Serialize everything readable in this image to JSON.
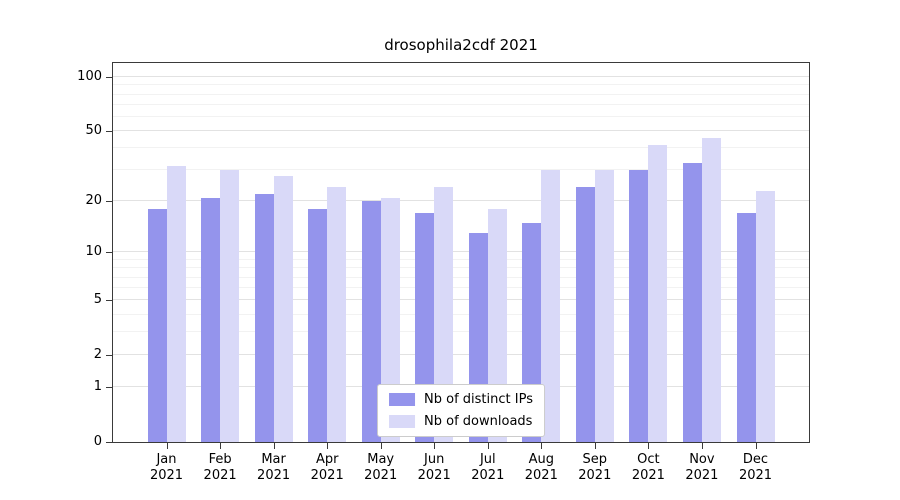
{
  "chart_data": {
    "type": "bar",
    "title": "drosophila2cdf 2021",
    "year": "2021",
    "categories": [
      "Jan",
      "Feb",
      "Mar",
      "Apr",
      "May",
      "Jun",
      "Jul",
      "Aug",
      "Sep",
      "Oct",
      "Nov",
      "Dec"
    ],
    "series": [
      {
        "name": "Nb of distinct IPs",
        "color": "#9494ec",
        "values": [
          18,
          21,
          22,
          18,
          20,
          17,
          13,
          15,
          24,
          30,
          33,
          17
        ]
      },
      {
        "name": "Nb of downloads",
        "color": "#d9d9f8",
        "values": [
          32,
          30,
          28,
          24,
          21,
          24,
          18,
          30,
          30,
          42,
          46,
          23
        ]
      }
    ],
    "y_ticks": [
      0,
      1,
      2,
      5,
      10,
      20,
      50,
      100
    ],
    "y_minor_ticks": [
      3,
      4,
      6,
      7,
      8,
      9,
      30,
      40,
      60,
      70,
      80,
      90
    ],
    "y_scale": "log1p",
    "ylim": [
      0,
      120
    ],
    "xlabel": "",
    "ylabel": "",
    "grid": "horizontal",
    "legend_position": "lower center"
  }
}
